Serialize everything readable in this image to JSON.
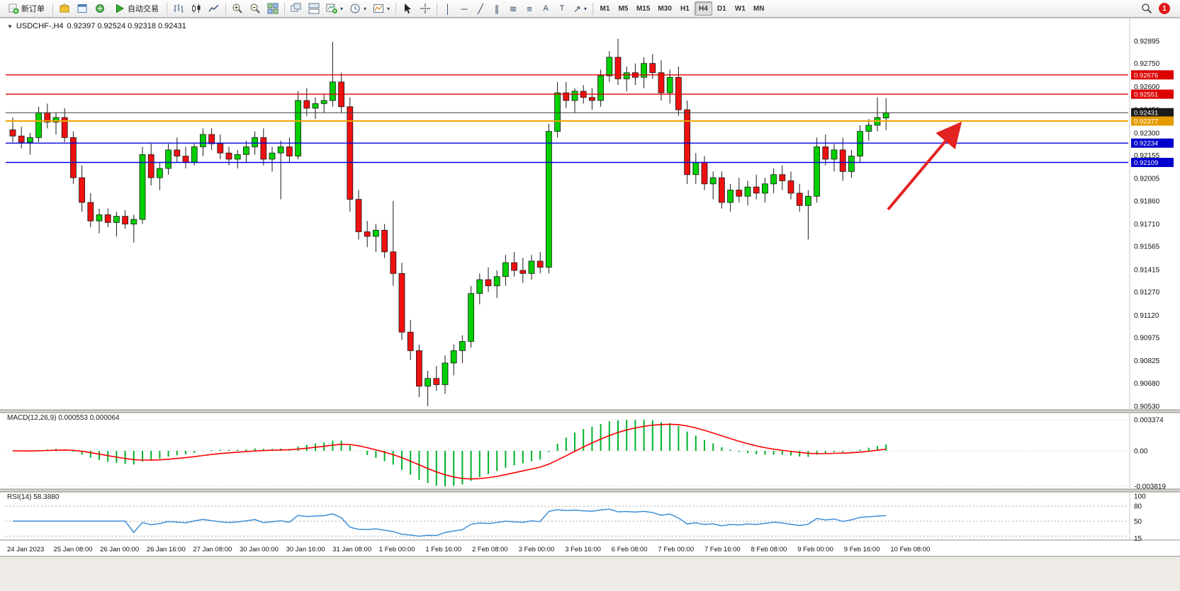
{
  "colors": {
    "up": "#00cf00",
    "down": "#ef1010",
    "candle_border": "#1a1a1a",
    "wick": "#1a1a1a",
    "background": "#ffffff",
    "panel_divider": "#d6d2ca",
    "axis_text": "#111111"
  },
  "toolbar": {
    "new_order_label": "新订单",
    "autotrade_label": "自动交易",
    "timeframes": [
      "M1",
      "M5",
      "M15",
      "M30",
      "H1",
      "H4",
      "D1",
      "W1",
      "MN"
    ],
    "active_timeframe": "H4",
    "notification_count": "1"
  },
  "icons": {
    "collapse": "▼",
    "dropdown": "▾",
    "vline": "│",
    "hline": "─",
    "trendline": "╱",
    "channel": "∥",
    "fibonacci": "≋",
    "levels": "≡",
    "text": "A",
    "label": "T",
    "arrows": "↗"
  },
  "chart": {
    "title": "USDCHF-,H4",
    "ohlc_text": "0.92397 0.92524 0.92318 0.92431",
    "current_price": "0.92431",
    "y_range": [
      0.9053,
      0.92895
    ],
    "price_ticks": [
      "0.92895",
      "0.92750",
      "0.92600",
      "0.92450",
      "0.92300",
      "0.92155",
      "0.92005",
      "0.91860",
      "0.91710",
      "0.91565",
      "0.91415",
      "0.91270",
      "0.91120",
      "0.90975",
      "0.90825",
      "0.90680",
      "0.90530"
    ],
    "levels": [
      {
        "price": 0.92676,
        "label": "0.92676",
        "color": "#e00000",
        "width": 1.4,
        "badge": "#dd0000"
      },
      {
        "price": 0.92551,
        "label": "0.92551",
        "color": "#e00000",
        "width": 1.4,
        "badge": "#dd0000"
      },
      {
        "price": 0.92431,
        "label": "0.92431",
        "color": "#3c3c3c",
        "width": 1,
        "badge": "#1a1a1a"
      },
      {
        "price": 0.92377,
        "label": "0.92377",
        "color": "#f0a500",
        "width": 2,
        "badge": "#e59a00"
      },
      {
        "price": 0.92234,
        "label": "0.92234",
        "color": "#0000e0",
        "width": 1.4,
        "badge": "#0000cc"
      },
      {
        "price": 0.92109,
        "label": "0.92109",
        "color": "#0000e0",
        "width": 1.4,
        "badge": "#0000cc"
      }
    ],
    "arrow": {
      "tail": [
        1253,
        296
      ],
      "head": [
        1352,
        178
      ],
      "color": "#e32222"
    }
  },
  "macd": {
    "label": "MACD(12,26,9) 0.000553 0.000064",
    "params": [
      12,
      26,
      9
    ],
    "scale": [
      "0.003374",
      "0.00",
      "-0.003819"
    ],
    "hist_color": "#00b22c",
    "signal_color": "#ff0000"
  },
  "rsi": {
    "label": "RSI(14) 58.3880",
    "period": 14,
    "value": "58.3880",
    "scale": [
      "100",
      "80",
      "50",
      "15"
    ],
    "levels": [
      80,
      50,
      20
    ],
    "line_color": "#3e8ed6"
  },
  "time_axis": [
    "24 Jan 2023",
    "25 Jan 08:00",
    "26 Jan 00:00",
    "26 Jan 16:00",
    "27 Jan 08:00",
    "30 Jan 00:00",
    "30 Jan 16:00",
    "31 Jan 08:00",
    "1 Feb 00:00",
    "1 Feb 16:00",
    "2 Feb 08:00",
    "3 Feb 00:00",
    "3 Feb 16:00",
    "6 Feb 08:00",
    "7 Feb 00:00",
    "7 Feb 16:00",
    "8 Feb 08:00",
    "9 Feb 00:00",
    "9 Feb 16:00",
    "10 Feb 08:00"
  ],
  "chart_data": {
    "type": "candlestick",
    "symbol": "USDCHF-",
    "timeframe": "H4",
    "last_ohlc": {
      "open": 0.92397,
      "high": 0.92524,
      "low": 0.92318,
      "close": 0.92431
    },
    "candles": [
      [
        0.9232,
        0.924,
        0.9224,
        0.9228
      ],
      [
        0.9228,
        0.9234,
        0.922,
        0.9224
      ],
      [
        0.9224,
        0.923,
        0.9216,
        0.9227
      ],
      [
        0.9227,
        0.9247,
        0.9224,
        0.9243
      ],
      [
        0.9243,
        0.9249,
        0.9233,
        0.9237
      ],
      [
        0.9237,
        0.9243,
        0.9229,
        0.924
      ],
      [
        0.924,
        0.9246,
        0.9224,
        0.9227
      ],
      [
        0.9227,
        0.9231,
        0.9197,
        0.9201
      ],
      [
        0.9201,
        0.9209,
        0.9179,
        0.9185
      ],
      [
        0.9185,
        0.9191,
        0.9169,
        0.9173
      ],
      [
        0.9173,
        0.9181,
        0.9165,
        0.9177
      ],
      [
        0.9177,
        0.9181,
        0.9169,
        0.9172
      ],
      [
        0.9172,
        0.9179,
        0.9163,
        0.9176
      ],
      [
        0.9176,
        0.918,
        0.9168,
        0.9171
      ],
      [
        0.9171,
        0.9177,
        0.9159,
        0.9174
      ],
      [
        0.9174,
        0.9221,
        0.9171,
        0.9216
      ],
      [
        0.9216,
        0.9223,
        0.9196,
        0.9201
      ],
      [
        0.9201,
        0.9211,
        0.9193,
        0.9207
      ],
      [
        0.9207,
        0.9223,
        0.9203,
        0.9219
      ],
      [
        0.9219,
        0.9227,
        0.9211,
        0.9215
      ],
      [
        0.9215,
        0.9221,
        0.9207,
        0.9211
      ],
      [
        0.9211,
        0.9223,
        0.9209,
        0.9221
      ],
      [
        0.9221,
        0.9233,
        0.9215,
        0.9229
      ],
      [
        0.9229,
        0.9233,
        0.9219,
        0.9223
      ],
      [
        0.9223,
        0.9229,
        0.9213,
        0.9217
      ],
      [
        0.9217,
        0.9221,
        0.9209,
        0.9213
      ],
      [
        0.9213,
        0.9219,
        0.9207,
        0.9216
      ],
      [
        0.9216,
        0.9225,
        0.9211,
        0.9221
      ],
      [
        0.9221,
        0.9231,
        0.9216,
        0.9227
      ],
      [
        0.9227,
        0.9233,
        0.9209,
        0.9213
      ],
      [
        0.9213,
        0.9221,
        0.9205,
        0.9217
      ],
      [
        0.9217,
        0.9225,
        0.9187,
        0.9221
      ],
      [
        0.9221,
        0.9227,
        0.9211,
        0.9215
      ],
      [
        0.9215,
        0.9257,
        0.9213,
        0.9251
      ],
      [
        0.9251,
        0.9259,
        0.9241,
        0.9246
      ],
      [
        0.9246,
        0.9253,
        0.9239,
        0.9249
      ],
      [
        0.9249,
        0.9255,
        0.9243,
        0.9251
      ],
      [
        0.9251,
        0.9289,
        0.9247,
        0.9263
      ],
      [
        0.9263,
        0.9269,
        0.9243,
        0.9247
      ],
      [
        0.9247,
        0.9253,
        0.9179,
        0.9187
      ],
      [
        0.9187,
        0.9193,
        0.9161,
        0.9166
      ],
      [
        0.9166,
        0.9173,
        0.9156,
        0.9163
      ],
      [
        0.9163,
        0.9171,
        0.9153,
        0.9167
      ],
      [
        0.9167,
        0.9171,
        0.9149,
        0.9153
      ],
      [
        0.9153,
        0.9186,
        0.9131,
        0.9139
      ],
      [
        0.9139,
        0.9146,
        0.9096,
        0.9101
      ],
      [
        0.9101,
        0.9109,
        0.9083,
        0.9089
      ],
      [
        0.9089,
        0.9093,
        0.9059,
        0.9066
      ],
      [
        0.9066,
        0.9076,
        0.9053,
        0.9071
      ],
      [
        0.9071,
        0.9079,
        0.9063,
        0.9067
      ],
      [
        0.9067,
        0.9086,
        0.9061,
        0.9081
      ],
      [
        0.9081,
        0.9093,
        0.9073,
        0.9089
      ],
      [
        0.9089,
        0.9099,
        0.9081,
        0.9095
      ],
      [
        0.9095,
        0.9131,
        0.9091,
        0.9126
      ],
      [
        0.9126,
        0.9139,
        0.9119,
        0.9135
      ],
      [
        0.9135,
        0.9143,
        0.9127,
        0.9131
      ],
      [
        0.9131,
        0.9141,
        0.9123,
        0.9137
      ],
      [
        0.9137,
        0.9151,
        0.9131,
        0.9146
      ],
      [
        0.9146,
        0.9153,
        0.9137,
        0.9141
      ],
      [
        0.9141,
        0.9149,
        0.9133,
        0.9139
      ],
      [
        0.9139,
        0.9151,
        0.9135,
        0.9147
      ],
      [
        0.9147,
        0.9153,
        0.9139,
        0.9143
      ],
      [
        0.9143,
        0.9236,
        0.9139,
        0.9231
      ],
      [
        0.9231,
        0.9263,
        0.9227,
        0.9256
      ],
      [
        0.9256,
        0.9263,
        0.9246,
        0.9251
      ],
      [
        0.9251,
        0.9259,
        0.9243,
        0.9257
      ],
      [
        0.9257,
        0.9261,
        0.9249,
        0.9253
      ],
      [
        0.9253,
        0.9259,
        0.9245,
        0.9251
      ],
      [
        0.9251,
        0.9271,
        0.9247,
        0.9267
      ],
      [
        0.9267,
        0.9283,
        0.9263,
        0.9279
      ],
      [
        0.9279,
        0.9291,
        0.9261,
        0.9265
      ],
      [
        0.9265,
        0.9273,
        0.9257,
        0.9269
      ],
      [
        0.9269,
        0.9275,
        0.9261,
        0.9266
      ],
      [
        0.9266,
        0.9279,
        0.9259,
        0.9275
      ],
      [
        0.9275,
        0.9281,
        0.9265,
        0.9269
      ],
      [
        0.9269,
        0.9277,
        0.9251,
        0.9256
      ],
      [
        0.9256,
        0.9271,
        0.9249,
        0.9266
      ],
      [
        0.9266,
        0.9273,
        0.9241,
        0.9245
      ],
      [
        0.9245,
        0.9251,
        0.9197,
        0.9203
      ],
      [
        0.9203,
        0.9217,
        0.9197,
        0.9211
      ],
      [
        0.9211,
        0.9215,
        0.9193,
        0.9197
      ],
      [
        0.9197,
        0.9205,
        0.9187,
        0.9201
      ],
      [
        0.9201,
        0.9205,
        0.9181,
        0.9185
      ],
      [
        0.9185,
        0.9197,
        0.9179,
        0.9193
      ],
      [
        0.9193,
        0.9201,
        0.9185,
        0.9189
      ],
      [
        0.9189,
        0.9199,
        0.9183,
        0.9195
      ],
      [
        0.9195,
        0.9203,
        0.9187,
        0.9191
      ],
      [
        0.9191,
        0.9201,
        0.9185,
        0.9197
      ],
      [
        0.9197,
        0.9207,
        0.9191,
        0.9203
      ],
      [
        0.9203,
        0.9209,
        0.9193,
        0.9199
      ],
      [
        0.9199,
        0.9205,
        0.9187,
        0.9191
      ],
      [
        0.9191,
        0.9197,
        0.9179,
        0.9183
      ],
      [
        0.9183,
        0.9193,
        0.9161,
        0.9189
      ],
      [
        0.9189,
        0.9227,
        0.9185,
        0.9221
      ],
      [
        0.9221,
        0.9229,
        0.9209,
        0.9213
      ],
      [
        0.9213,
        0.9223,
        0.9205,
        0.9219
      ],
      [
        0.9219,
        0.9227,
        0.9199,
        0.9205
      ],
      [
        0.9205,
        0.9219,
        0.9201,
        0.9215
      ],
      [
        0.9215,
        0.9235,
        0.9211,
        0.9231
      ],
      [
        0.9231,
        0.9239,
        0.9225,
        0.9235
      ],
      [
        0.9235,
        0.9253,
        0.9231,
        0.924
      ],
      [
        0.92397,
        0.92524,
        0.92318,
        0.92431
      ]
    ]
  }
}
